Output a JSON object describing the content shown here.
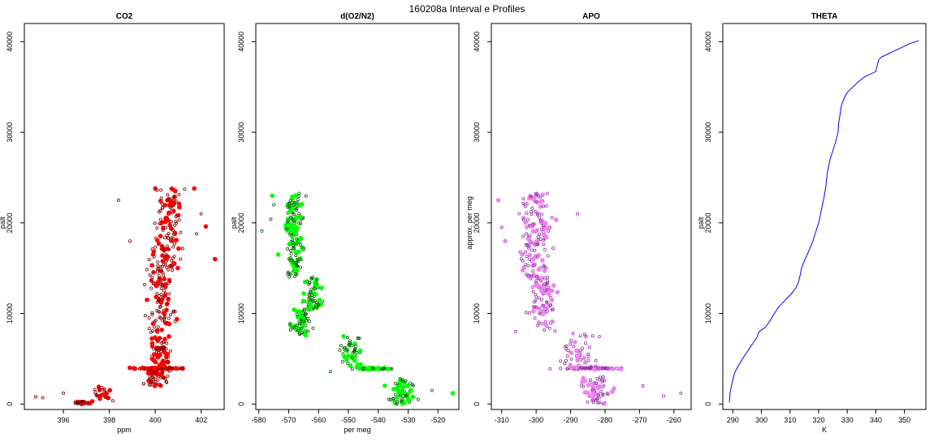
{
  "figure_title": "160208a   Interval e Profiles",
  "chart_data": [
    {
      "type": "scatter",
      "title": "CO2",
      "xlabel": "ppm",
      "ylabel": "palt",
      "xlim": [
        394.3,
        403.0
      ],
      "ylim": [
        -600,
        42000
      ],
      "x_ticks": [
        396,
        398,
        400,
        402
      ],
      "y_ticks": [
        0,
        10000,
        20000,
        30000,
        40000
      ],
      "grid": false,
      "marker_color": "#ff0000",
      "marker_edge": "#800000",
      "bands": [
        {
          "x_center": 396.8,
          "x_spread": 0.6,
          "y_min": 0,
          "y_max": 300,
          "count": 22
        },
        {
          "x_center": 397.6,
          "x_spread": 0.7,
          "y_min": 300,
          "y_max": 2000,
          "count": 22
        },
        {
          "x_center": 400.0,
          "x_spread": 0.8,
          "y_min": 2000,
          "y_max": 3800,
          "count": 55
        },
        {
          "x_center": 400.1,
          "x_spread": 1.5,
          "y_min": 3850,
          "y_max": 4000,
          "count": 70
        },
        {
          "x_center": 400.2,
          "x_spread": 0.8,
          "y_min": 4000,
          "y_max": 9000,
          "count": 80
        },
        {
          "x_center": 400.3,
          "x_spread": 0.9,
          "y_min": 9000,
          "y_max": 15000,
          "count": 90
        },
        {
          "x_center": 400.5,
          "x_spread": 0.9,
          "y_min": 15000,
          "y_max": 20000,
          "count": 80
        },
        {
          "x_center": 400.6,
          "x_spread": 0.8,
          "y_min": 20000,
          "y_max": 23800,
          "count": 60
        }
      ],
      "outliers": [
        [
          394.8,
          800
        ],
        [
          395.1,
          700
        ],
        [
          398.4,
          22500
        ],
        [
          402.2,
          19600
        ],
        [
          401.8,
          18800
        ],
        [
          402.6,
          16000
        ],
        [
          402.0,
          21000
        ],
        [
          396.0,
          1200
        ],
        [
          401.7,
          23800
        ],
        [
          398.9,
          18000
        ]
      ]
    },
    {
      "type": "scatter",
      "title": "d(O2/N2)",
      "xlabel": "per meg",
      "ylabel": "palt",
      "xlim": [
        -581,
        -513
      ],
      "ylim": [
        -600,
        42000
      ],
      "x_ticks": [
        -580,
        -570,
        -560,
        -550,
        -540,
        -530,
        -520
      ],
      "y_ticks": [
        0,
        10000,
        20000,
        30000,
        40000
      ],
      "grid": false,
      "marker_color": "#00ff00",
      "marker_edge": "#006000",
      "bands": [
        {
          "x_center": -532.0,
          "x_spread": 6.5,
          "y_min": 0,
          "y_max": 2800,
          "count": 60
        },
        {
          "x_center": -542.0,
          "x_spread": 10.0,
          "y_min": 3850,
          "y_max": 4000,
          "count": 55
        },
        {
          "x_center": -549.0,
          "x_spread": 5.0,
          "y_min": 4000,
          "y_max": 7500,
          "count": 45
        },
        {
          "x_center": -566.0,
          "x_spread": 4.5,
          "y_min": 7500,
          "y_max": 10500,
          "count": 60
        },
        {
          "x_center": -562.0,
          "x_spread": 4.5,
          "y_min": 10500,
          "y_max": 14000,
          "count": 60
        },
        {
          "x_center": -568.0,
          "x_spread": 4.0,
          "y_min": 14000,
          "y_max": 19000,
          "count": 70
        },
        {
          "x_center": -568.0,
          "x_spread": 4.5,
          "y_min": 19000,
          "y_max": 23300,
          "count": 70
        }
      ],
      "outliers": [
        [
          -579.0,
          19100
        ],
        [
          -575.0,
          22000
        ],
        [
          -515.0,
          1200
        ],
        [
          -522.0,
          1500
        ],
        [
          -556.0,
          3600
        ],
        [
          -573.5,
          16500
        ],
        [
          -576.0,
          20400
        ],
        [
          -560.0,
          10900
        ],
        [
          -546.0,
          5900
        ],
        [
          -575.5,
          23000
        ]
      ]
    },
    {
      "type": "scatter",
      "title": "APO",
      "xlabel": "",
      "ylabel": "approx. per meg",
      "xlim": [
        -313,
        -255
      ],
      "ylim": [
        -600,
        42000
      ],
      "x_ticks": [
        -310,
        -300,
        -290,
        -280,
        -270,
        -260
      ],
      "y_ticks": [
        0,
        10000,
        20000,
        30000,
        40000
      ],
      "grid": false,
      "marker_color": "#ee82ee",
      "marker_edge": "#9a30b0",
      "bands": [
        {
          "x_center": -283.0,
          "x_spread": 7.0,
          "y_min": 0,
          "y_max": 3000,
          "count": 60
        },
        {
          "x_center": -284.0,
          "x_spread": 13.0,
          "y_min": 3850,
          "y_max": 4000,
          "count": 70
        },
        {
          "x_center": -288.0,
          "x_spread": 7.0,
          "y_min": 4000,
          "y_max": 8000,
          "count": 50
        },
        {
          "x_center": -298.0,
          "x_spread": 6.0,
          "y_min": 8000,
          "y_max": 14000,
          "count": 80
        },
        {
          "x_center": -300.0,
          "x_spread": 6.0,
          "y_min": 14000,
          "y_max": 19000,
          "count": 75
        },
        {
          "x_center": -300.0,
          "x_spread": 6.5,
          "y_min": 19000,
          "y_max": 23300,
          "count": 65
        }
      ],
      "outliers": [
        [
          -311.0,
          22500
        ],
        [
          -310.0,
          19500
        ],
        [
          -258.0,
          1200
        ],
        [
          -263.0,
          900
        ],
        [
          -306.0,
          8000
        ],
        [
          -309.0,
          18000
        ],
        [
          -288.0,
          21000
        ],
        [
          -269.0,
          2000
        ]
      ]
    },
    {
      "type": "line",
      "title": "THETA",
      "xlabel": "K",
      "ylabel": "palt",
      "xlim": [
        286.5,
        357.5
      ],
      "ylim": [
        -600,
        42000
      ],
      "x_ticks": [
        290,
        300,
        310,
        320,
        330,
        340,
        350
      ],
      "y_ticks": [
        0,
        10000,
        20000,
        30000,
        40000
      ],
      "grid": false,
      "line_color": "#0000ff",
      "x": [
        288.8,
        288.9,
        289.0,
        289.5,
        290.0,
        290.6,
        291.5,
        292.8,
        294.0,
        295.5,
        297.0,
        298.5,
        299.0,
        300.0,
        301.5,
        303.0,
        304.5,
        306.0,
        307.5,
        309.0,
        310.5,
        312.0,
        313.0,
        313.6,
        314.0,
        315.0,
        316.0,
        317.0,
        318.0,
        319.0,
        320.0,
        321.0,
        322.0,
        322.5,
        323.0,
        324.0,
        325.0,
        326.0,
        326.8,
        327.0,
        327.5,
        328.0,
        329.0,
        330.0,
        332.0,
        334.0,
        336.0,
        338.0,
        340.0,
        340.6,
        341.0,
        342.0,
        344.0,
        346.0,
        348.0,
        350.0,
        352.0,
        354.0,
        355.0
      ],
      "y": [
        200,
        800,
        1200,
        2000,
        2700,
        3400,
        4000,
        4700,
        5300,
        6000,
        6700,
        7400,
        7900,
        8200,
        8500,
        9200,
        10000,
        10700,
        11200,
        11700,
        12200,
        12800,
        13500,
        14300,
        15000,
        15800,
        16500,
        17200,
        18000,
        19000,
        20000,
        21500,
        23000,
        24000,
        25500,
        27000,
        28000,
        29000,
        30000,
        31000,
        32000,
        33000,
        33800,
        34400,
        35000,
        35600,
        36100,
        36400,
        36700,
        37500,
        38000,
        38300,
        38600,
        38900,
        39200,
        39500,
        39800,
        40000,
        40100
      ]
    }
  ]
}
